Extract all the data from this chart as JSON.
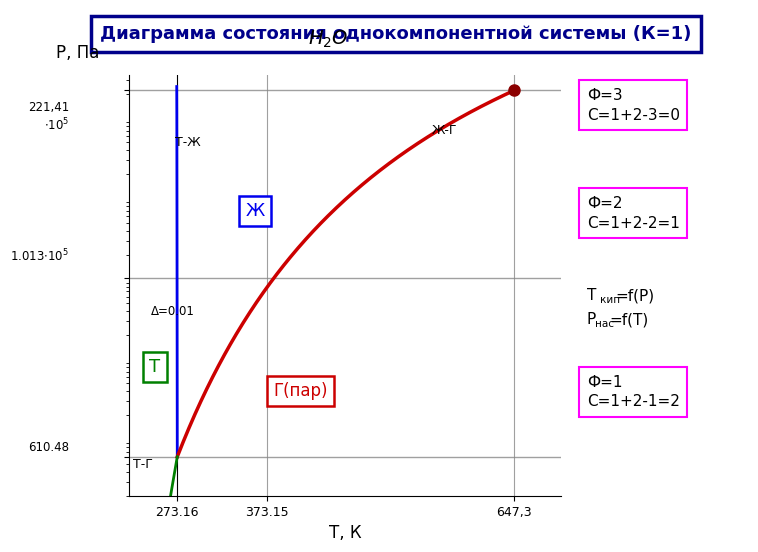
{
  "title": "Диаграмма состояния однокомпонентной системы (К=1)",
  "subtitle": "H₂O",
  "xlabel": "T, К",
  "ylabel": "P, Па",
  "bg_color": "#ffffff",
  "title_color": "#00008B",
  "T_triple": 273.16,
  "P_triple": 610.48,
  "T_critical": 647.3,
  "P_critical": 22141000,
  "P_atm": 101300,
  "T_boil": 373.15,
  "label_Tj": "Т-Ж",
  "label_Tg": "Т-Г",
  "label_Zg": "Ж-Г",
  "label_T": "Т",
  "label_Zh": "Ж",
  "label_G": "Г(пар)",
  "label_delta": "Δ=0.01",
  "label_Tkip": "Т",
  "label_Tkip_sub": "кип",
  "label_Tkip_end": "=f(Р)",
  "label_Pnas": "Р",
  "label_Pnas_sub": "нас",
  "label_Pnas_end": "=f(Т)",
  "box1_line1": "Ф=3",
  "box1_line2": "С=1+2-3=0",
  "box2_line1": "Ф=2",
  "box2_line2": "С=1+2-2=1",
  "box3_line1": "Ф=1",
  "box3_line2": "С=1+2-1=2",
  "line_color_blue": "#0000EE",
  "line_color_red": "#CC0000",
  "line_color_green": "#008000",
  "line_color_gray": "#888888",
  "dot_color": "#8B0000",
  "magenta": "#FF00FF"
}
